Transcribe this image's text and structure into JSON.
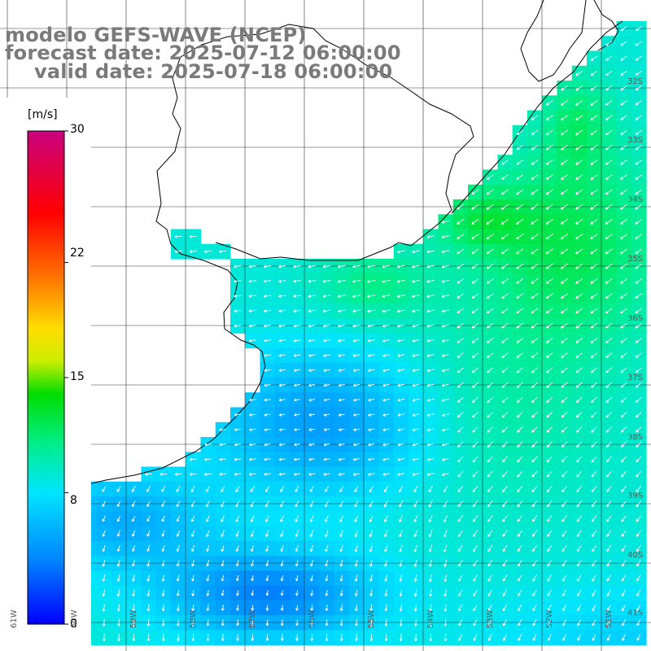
{
  "title": {
    "line1": "modelo GEFS-WAVE (NCEP)",
    "line2": "forecast date: 2025-07-12 06:00:00",
    "line3": "valid date: 2025-07-18 06:00:00"
  },
  "colorbar": {
    "unit": "[m/s]",
    "min": 0,
    "max": 30,
    "ticks": [
      "30",
      "22",
      "15",
      "8",
      "0"
    ],
    "tick_values": [
      30,
      22,
      15,
      8,
      0
    ],
    "stops": [
      {
        "v": 0,
        "color": "#0000ff"
      },
      {
        "v": 4,
        "color": "#0088ff"
      },
      {
        "v": 8,
        "color": "#00e5ff"
      },
      {
        "v": 11,
        "color": "#00ee88"
      },
      {
        "v": 14,
        "color": "#00dd00"
      },
      {
        "v": 16,
        "color": "#ccee00"
      },
      {
        "v": 18,
        "color": "#ffdd00"
      },
      {
        "v": 21,
        "color": "#ff7700"
      },
      {
        "v": 25,
        "color": "#ff0000"
      },
      {
        "v": 30,
        "color": "#c8007e"
      }
    ]
  },
  "grid": {
    "lat_labels": [
      "32S",
      "33S",
      "34S",
      "35S",
      "36S",
      "37S",
      "38S",
      "39S",
      "40S",
      "41S"
    ],
    "lon_labels": [
      "61W",
      "60W",
      "59W",
      "58W",
      "57W",
      "56W",
      "55W",
      "54W",
      "53W",
      "52W",
      "51W"
    ]
  },
  "field": {
    "variable": "wind speed",
    "units": "m/s",
    "cell_deg": 0.25,
    "dominant_direction": "from northeast"
  }
}
